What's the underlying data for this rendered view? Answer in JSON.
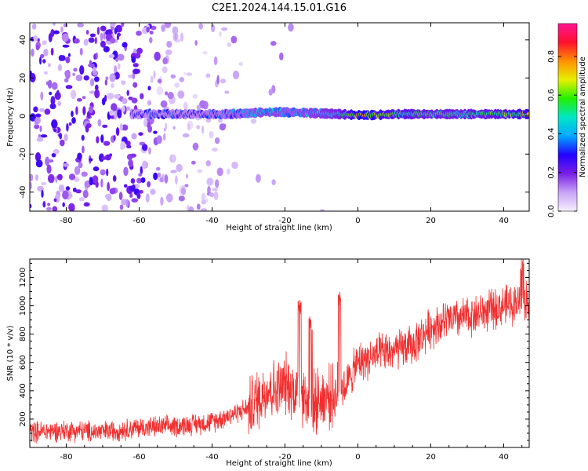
{
  "title": "C2E1.2024.144.15.01.G16",
  "chart_data": [
    {
      "type": "heatmap",
      "xlabel": "Height of straight line (km)",
      "ylabel": "Frequency (Hz)",
      "xlim": [
        -90,
        47
      ],
      "ylim": [
        -50,
        49
      ],
      "x_ticks": [
        -80,
        -60,
        -40,
        -20,
        0,
        20,
        40
      ],
      "y_ticks": [
        -40,
        -20,
        0,
        20,
        40
      ],
      "colorbar": {
        "label": "Normalized spectral amplitude",
        "range": [
          0,
          0.97
        ],
        "ticks": [
          0.0,
          0.2,
          0.4,
          0.6,
          0.8
        ],
        "tick_labels": [
          "0.0",
          "0.2",
          "0.4",
          "0.6",
          "0.8"
        ],
        "colors": [
          "#f5f0ff",
          "#c9a3f7",
          "#7a1fe8",
          "#2200ff",
          "#00a8ff",
          "#00e6c8",
          "#22f000",
          "#e6f000",
          "#ff9000",
          "#ff1030",
          "#ff1493"
        ]
      },
      "ridge": {
        "x": [
          -62,
          -55,
          -45,
          -35,
          -25,
          -18,
          -12,
          -5,
          0,
          5,
          10,
          20,
          30,
          40,
          47
        ],
        "frequency": [
          1,
          1,
          1,
          1,
          2,
          2,
          1.5,
          1,
          0.5,
          0.5,
          1,
          1,
          1,
          1,
          1
        ],
        "amplitude": [
          0.3,
          0.35,
          0.35,
          0.4,
          0.5,
          0.45,
          0.5,
          0.55,
          0.85,
          0.75,
          0.65,
          0.6,
          0.6,
          0.65,
          0.75
        ]
      },
      "noise_region": {
        "x": [
          -90,
          -30
        ],
        "amplitude": 0.2
      },
      "grid": false
    },
    {
      "type": "line",
      "xlabel": "Height of straight line (km)",
      "ylabel": "SNR (10 * v/v)",
      "xlim": [
        -90,
        47
      ],
      "ylim": [
        0,
        1330
      ],
      "x_ticks": [
        -80,
        -60,
        -40,
        -20,
        0,
        20,
        40
      ],
      "y_ticks": [
        200,
        400,
        600,
        800,
        1000,
        1200
      ],
      "color": "#f03030",
      "grid": false,
      "series": [
        {
          "x": [
            -90,
            -80,
            -70,
            -60,
            -50,
            -45,
            -40,
            -35,
            -30,
            -27,
            -25,
            -22,
            -20,
            -18,
            -15,
            -13,
            -10,
            -8,
            -5,
            -3,
            0,
            5,
            10,
            15,
            20,
            25,
            30,
            35,
            40,
            45,
            47
          ],
          "y": [
            110,
            120,
            110,
            140,
            150,
            165,
            180,
            230,
            280,
            350,
            420,
            400,
            450,
            420,
            350,
            300,
            350,
            360,
            380,
            450,
            600,
            650,
            680,
            720,
            850,
            900,
            920,
            960,
            1000,
            1030,
            1040
          ],
          "peaks": [
            {
              "x": -16,
              "y": 1050
            },
            {
              "x": -13,
              "y": 930
            },
            {
              "x": -5,
              "y": 1100
            },
            {
              "x": 45,
              "y": 1350
            }
          ]
        }
      ]
    }
  ]
}
